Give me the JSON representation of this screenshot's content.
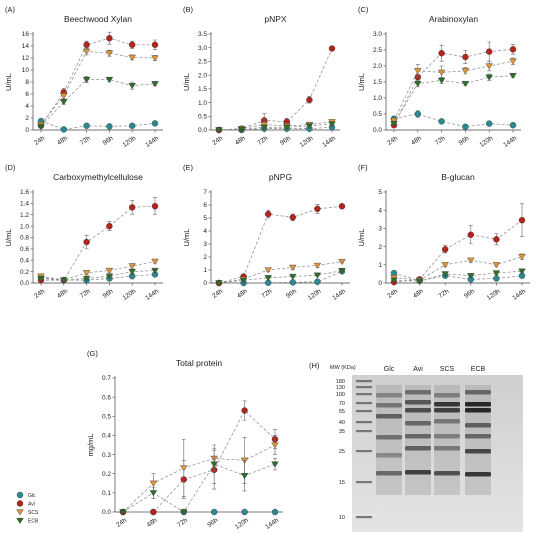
{
  "series_styles": [
    {
      "key": "glc",
      "name": "Glc",
      "color": "#2a8a8f",
      "marker": "circle"
    },
    {
      "key": "avi",
      "name": "Avi",
      "color": "#b5241c",
      "marker": "circle"
    },
    {
      "key": "scs",
      "name": "SCS",
      "color": "#e0953a",
      "marker": "triangle-down"
    },
    {
      "key": "ecb",
      "name": "ECB",
      "color": "#2f6e2a",
      "marker": "triangle-down"
    }
  ],
  "chart_data": [
    {
      "id": "A",
      "panel_label": "(A)",
      "type": "line",
      "title": "Beechwood Xylan",
      "ylabel": "U/mL",
      "x": [
        "24h",
        "48h",
        "72h",
        "96h",
        "120h",
        "144h"
      ],
      "ylim": [
        0,
        16
      ],
      "yticks": [
        0,
        2,
        4,
        6,
        8,
        10,
        12,
        14,
        16
      ],
      "series": [
        {
          "name": "Glc",
          "values": [
            1.5,
            0.1,
            0.7,
            0.6,
            0.7,
            1.1
          ],
          "err": [
            0.3,
            0.1,
            0.1,
            0.1,
            0.1,
            0.1
          ]
        },
        {
          "name": "Avi",
          "values": [
            0.7,
            6.3,
            14.2,
            15.3,
            14.2,
            14.2
          ],
          "err": [
            0.3,
            0.6,
            0.6,
            1.0,
            0.6,
            0.8
          ]
        },
        {
          "name": "SCS",
          "values": [
            0.9,
            5.7,
            13.1,
            12.8,
            12.1,
            12.0
          ],
          "err": [
            0.2,
            0.5,
            0.6,
            0.5,
            0.4,
            0.4
          ]
        },
        {
          "name": "ECB",
          "values": [
            0.6,
            4.7,
            8.4,
            8.4,
            7.4,
            7.7
          ],
          "err": [
            0.2,
            0.4,
            0.5,
            0.4,
            0.6,
            0.3
          ]
        }
      ]
    },
    {
      "id": "B",
      "panel_label": "(B)",
      "type": "line",
      "title": "pNPX",
      "ylabel": "U/mL",
      "x": [
        "24h",
        "48h",
        "72h",
        "96h",
        "120h",
        "144h"
      ],
      "ylim": [
        0,
        3.5
      ],
      "yticks": [
        0,
        0.5,
        1,
        1.5,
        2,
        2.5,
        3,
        3.5
      ],
      "ytick_decimals": 1,
      "series": [
        {
          "name": "Glc",
          "values": [
            0.0,
            0.0,
            0.05,
            0.05,
            0.05,
            0.1
          ],
          "err": [
            0.01,
            0.01,
            0.02,
            0.02,
            0.02,
            0.02
          ]
        },
        {
          "name": "Avi",
          "values": [
            0.0,
            0.05,
            0.35,
            0.3,
            1.1,
            2.97
          ],
          "err": [
            0.01,
            0.02,
            0.25,
            0.12,
            0.12,
            0.05
          ]
        },
        {
          "name": "SCS",
          "values": [
            0.0,
            0.05,
            0.2,
            0.15,
            0.2,
            0.3
          ],
          "err": [
            0.01,
            0.02,
            0.2,
            0.1,
            0.05,
            0.05
          ]
        },
        {
          "name": "ECB",
          "values": [
            0.0,
            0.02,
            0.1,
            0.1,
            0.15,
            0.22
          ],
          "err": [
            0.01,
            0.01,
            0.05,
            0.05,
            0.05,
            0.05
          ]
        }
      ]
    },
    {
      "id": "C",
      "panel_label": "(C)",
      "type": "line",
      "title": "Arabinoxylan",
      "ylabel": "U/mL",
      "x": [
        "24h",
        "48h",
        "72h",
        "96h",
        "120h",
        "144h"
      ],
      "ylim": [
        0,
        3
      ],
      "yticks": [
        0,
        0.5,
        1,
        1.5,
        2,
        2.5,
        3
      ],
      "ytick_decimals": 1,
      "series": [
        {
          "name": "Glc",
          "values": [
            0.35,
            0.5,
            0.27,
            0.1,
            0.2,
            0.15
          ],
          "err": [
            0.08,
            0.1,
            0.05,
            0.03,
            0.03,
            0.03
          ]
        },
        {
          "name": "Avi",
          "values": [
            0.15,
            1.65,
            2.4,
            2.28,
            2.45,
            2.52
          ],
          "err": [
            0.05,
            0.2,
            0.25,
            0.2,
            0.3,
            0.15
          ]
        },
        {
          "name": "SCS",
          "values": [
            0.3,
            1.85,
            1.8,
            1.85,
            2.0,
            2.15
          ],
          "err": [
            0.05,
            0.2,
            0.2,
            0.1,
            0.15,
            0.1
          ]
        },
        {
          "name": "ECB",
          "values": [
            0.2,
            1.45,
            1.55,
            1.45,
            1.65,
            1.7
          ],
          "err": [
            0.05,
            0.1,
            0.1,
            0.05,
            0.1,
            0.05
          ]
        }
      ]
    },
    {
      "id": "D",
      "panel_label": "(D)",
      "type": "line",
      "title": "Carboxymethylcellulose",
      "ylabel": "U/mL",
      "x": [
        "24h",
        "48h",
        "72h",
        "96h",
        "120h",
        "144h"
      ],
      "ylim": [
        0,
        1.6
      ],
      "yticks": [
        0,
        0.2,
        0.4,
        0.6,
        0.8,
        1,
        1.2,
        1.4,
        1.6
      ],
      "ytick_decimals": 1,
      "series": [
        {
          "name": "Glc",
          "values": [
            0.1,
            0.05,
            0.05,
            0.08,
            0.12,
            0.15
          ],
          "err": [
            0.03,
            0.02,
            0.02,
            0.02,
            0.03,
            0.03
          ]
        },
        {
          "name": "Avi",
          "values": [
            0.05,
            0.05,
            0.72,
            1.0,
            1.33,
            1.35
          ],
          "err": [
            0.02,
            0.02,
            0.12,
            0.08,
            0.12,
            0.15
          ]
        },
        {
          "name": "SCS",
          "values": [
            0.12,
            0.05,
            0.18,
            0.22,
            0.3,
            0.38
          ],
          "err": [
            0.03,
            0.02,
            0.03,
            0.03,
            0.04,
            0.03
          ]
        },
        {
          "name": "ECB",
          "values": [
            0.08,
            0.05,
            0.08,
            0.12,
            0.2,
            0.22
          ],
          "err": [
            0.02,
            0.02,
            0.02,
            0.03,
            0.03,
            0.03
          ]
        }
      ]
    },
    {
      "id": "E",
      "panel_label": "(E)",
      "type": "line",
      "title": "pNPG",
      "ylabel": "U/mL",
      "x": [
        "24h",
        "48h",
        "72h",
        "96h",
        "120h",
        "144h"
      ],
      "ylim": [
        0,
        7
      ],
      "yticks": [
        0,
        1,
        2,
        3,
        4,
        5,
        6,
        7
      ],
      "series": [
        {
          "name": "Glc",
          "values": [
            0.0,
            0.0,
            0.02,
            0.05,
            0.1,
            0.9
          ],
          "err": [
            0.01,
            0.01,
            0.02,
            0.02,
            0.03,
            0.1
          ]
        },
        {
          "name": "Avi",
          "values": [
            0.0,
            0.5,
            5.3,
            5.05,
            5.7,
            5.9
          ],
          "err": [
            0.02,
            0.1,
            0.3,
            0.25,
            0.35,
            0.1
          ]
        },
        {
          "name": "SCS",
          "values": [
            0.0,
            0.3,
            1.0,
            1.2,
            1.35,
            1.65
          ],
          "err": [
            0.02,
            0.05,
            0.1,
            0.15,
            0.15,
            0.1
          ]
        },
        {
          "name": "ECB",
          "values": [
            0.0,
            0.2,
            0.4,
            0.5,
            0.6,
            0.95
          ],
          "err": [
            0.02,
            0.05,
            0.05,
            0.05,
            0.05,
            0.05
          ]
        }
      ]
    },
    {
      "id": "F",
      "panel_label": "(F)",
      "type": "line",
      "title": "B-glucan",
      "ylabel": "U/mL",
      "x": [
        "24h",
        "48h",
        "72h",
        "96h",
        "120h",
        "144h"
      ],
      "ylim": [
        0,
        5
      ],
      "yticks": [
        0,
        1,
        2,
        3,
        4,
        5
      ],
      "series": [
        {
          "name": "Glc",
          "values": [
            0.55,
            0.12,
            0.4,
            0.2,
            0.25,
            0.4
          ],
          "err": [
            0.05,
            0.05,
            0.05,
            0.05,
            0.05,
            0.05
          ]
        },
        {
          "name": "Avi",
          "values": [
            0.05,
            0.2,
            1.85,
            2.65,
            2.4,
            3.45
          ],
          "err": [
            0.05,
            0.05,
            0.2,
            0.5,
            0.3,
            0.9
          ]
        },
        {
          "name": "SCS",
          "values": [
            0.3,
            0.15,
            1.0,
            1.25,
            1.0,
            1.45
          ],
          "err": [
            0.05,
            0.05,
            0.1,
            0.1,
            0.1,
            0.15
          ]
        },
        {
          "name": "ECB",
          "values": [
            0.15,
            0.1,
            0.5,
            0.4,
            0.55,
            0.65
          ],
          "err": [
            0.05,
            0.05,
            0.1,
            0.05,
            0.1,
            0.1
          ]
        }
      ]
    },
    {
      "id": "G",
      "panel_label": "(G)",
      "type": "line",
      "title": "Total protein",
      "ylabel": "mg/mL",
      "x": [
        "24h",
        "48h",
        "72h",
        "96h",
        "120h",
        "144h"
      ],
      "ylim": [
        0,
        0.7
      ],
      "yticks": [
        0,
        0.1,
        0.2,
        0.3,
        0.4,
        0.5,
        0.6,
        0.7
      ],
      "ytick_decimals": 1,
      "series": [
        {
          "name": "Glc",
          "values": [
            0.0,
            0.0,
            0.0,
            0.0,
            0.0,
            0.0
          ],
          "err": [
            0.0,
            0.0,
            0.0,
            0.0,
            0.0,
            0.0
          ]
        },
        {
          "name": "Avi",
          "values": [
            0.0,
            0.0,
            0.17,
            0.22,
            0.53,
            0.38
          ],
          "err": [
            0.0,
            0.0,
            0.1,
            0.1,
            0.05,
            0.05
          ]
        },
        {
          "name": "SCS",
          "values": [
            0.0,
            0.15,
            0.23,
            0.28,
            0.27,
            0.35
          ],
          "err": [
            0.0,
            0.05,
            0.15,
            0.05,
            0.12,
            0.05
          ]
        },
        {
          "name": "ECB",
          "values": [
            0.0,
            0.1,
            0.0,
            0.25,
            0.19,
            0.25
          ],
          "err": [
            0.0,
            0.03,
            0.0,
            0.1,
            0.08,
            0.03
          ]
        }
      ]
    }
  ],
  "gel": {
    "panel_label": "(H)",
    "mw_label": "MW (KDa)",
    "markers": [
      "180",
      "130",
      "100",
      "70",
      "55",
      "40",
      "35",
      "25",
      "15",
      "10"
    ],
    "lanes": [
      "Glc",
      "Avi",
      "SCS",
      "ECB"
    ]
  }
}
